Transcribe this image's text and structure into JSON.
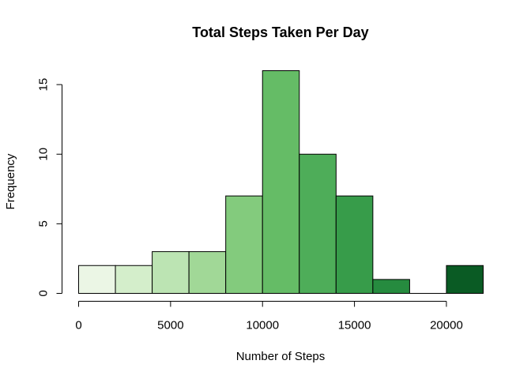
{
  "chart_data": {
    "type": "bar",
    "title": "Total Steps Taken Per Day",
    "xlabel": "Number of Steps",
    "ylabel": "Frequency",
    "bins": [
      {
        "from": 0,
        "to": 2000,
        "count": 2,
        "color": "#EBF6E5"
      },
      {
        "from": 2000,
        "to": 4000,
        "count": 2,
        "color": "#D4EECB"
      },
      {
        "from": 4000,
        "to": 6000,
        "count": 3,
        "color": "#BCE4B3"
      },
      {
        "from": 6000,
        "to": 8000,
        "count": 3,
        "color": "#A1D897"
      },
      {
        "from": 8000,
        "to": 10000,
        "count": 7,
        "color": "#83CB7D"
      },
      {
        "from": 10000,
        "to": 12000,
        "count": 16,
        "color": "#65BC66"
      },
      {
        "from": 12000,
        "to": 14000,
        "count": 10,
        "color": "#4EAD59"
      },
      {
        "from": 14000,
        "to": 16000,
        "count": 7,
        "color": "#379C4A"
      },
      {
        "from": 16000,
        "to": 18000,
        "count": 1,
        "color": "#268B3F"
      },
      {
        "from": 18000,
        "to": 20000,
        "count": 0,
        "color": "#177A34"
      },
      {
        "from": 20000,
        "to": 22000,
        "count": 2,
        "color": "#0A5B24"
      }
    ],
    "xlim": [
      0,
      22000
    ],
    "ylim": [
      0,
      16
    ],
    "x_ticks": [
      0,
      5000,
      10000,
      15000,
      20000
    ],
    "y_ticks": [
      0,
      5,
      10,
      15
    ],
    "grid": false,
    "legend": "none"
  }
}
